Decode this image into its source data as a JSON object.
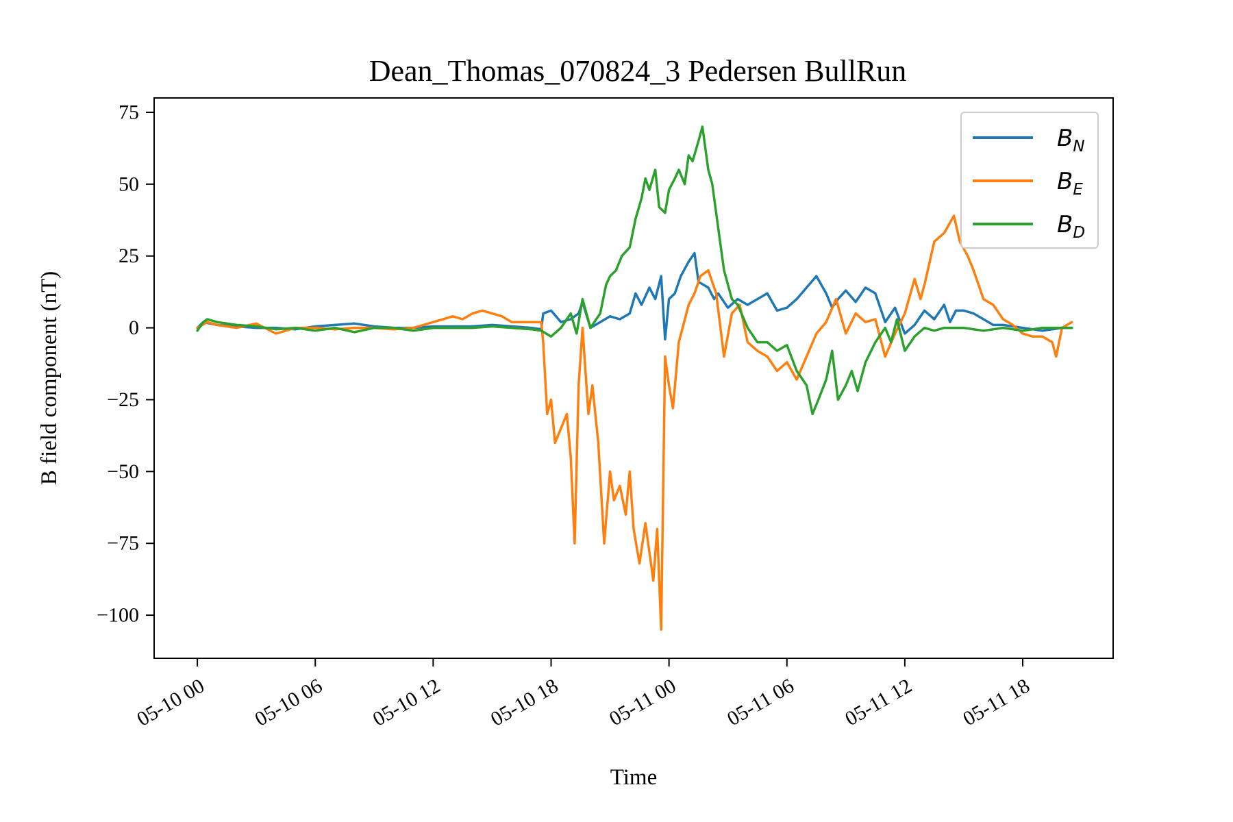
{
  "chart_data": {
    "type": "line",
    "title": "Dean_Thomas_070824_3 Pedersen BullRun",
    "xlabel": "Time",
    "ylabel": "B field component (nT)",
    "x_unit": "hours since 05-10 00:00",
    "xlim": [
      -2.2,
      46.6
    ],
    "ylim": [
      -115,
      80
    ],
    "xticks": [
      {
        "label": "05-10 00",
        "value": 0
      },
      {
        "label": "05-10 06",
        "value": 6
      },
      {
        "label": "05-10 12",
        "value": 12
      },
      {
        "label": "05-10 18",
        "value": 18
      },
      {
        "label": "05-11 00",
        "value": 24
      },
      {
        "label": "05-11 06",
        "value": 30
      },
      {
        "label": "05-11 12",
        "value": 36
      },
      {
        "label": "05-11 18",
        "value": 42
      }
    ],
    "yticks": [
      {
        "label": "75",
        "value": 75
      },
      {
        "label": "50",
        "value": 50
      },
      {
        "label": "25",
        "value": 25
      },
      {
        "label": "0",
        "value": 0
      },
      {
        "label": "−25",
        "value": -25
      },
      {
        "label": "−50",
        "value": -50
      },
      {
        "label": "−75",
        "value": -75
      },
      {
        "label": "−100",
        "value": -100
      }
    ],
    "grid": false,
    "legend_position": "top-right",
    "series": [
      {
        "name": "B_N",
        "legend_main": "B",
        "legend_sub": "N",
        "color": "#1f77b4",
        "points": [
          [
            0,
            0
          ],
          [
            0.3,
            2
          ],
          [
            1,
            1
          ],
          [
            2,
            0.5
          ],
          [
            3,
            0
          ],
          [
            4,
            0
          ],
          [
            5,
            -0.5
          ],
          [
            6,
            0.5
          ],
          [
            7,
            1
          ],
          [
            8,
            1.5
          ],
          [
            9,
            0.5
          ],
          [
            10,
            0
          ],
          [
            11,
            0
          ],
          [
            12,
            0.5
          ],
          [
            13,
            0.5
          ],
          [
            14,
            0.5
          ],
          [
            15,
            1
          ],
          [
            16,
            0.5
          ],
          [
            17,
            0
          ],
          [
            17.5,
            -0.5
          ],
          [
            17.6,
            5
          ],
          [
            18,
            6
          ],
          [
            18.5,
            2
          ],
          [
            19,
            3
          ],
          [
            19.4,
            5
          ],
          [
            19.6,
            9
          ],
          [
            20,
            0
          ],
          [
            20.5,
            2
          ],
          [
            21,
            4
          ],
          [
            21.5,
            3
          ],
          [
            22,
            5
          ],
          [
            22.3,
            12
          ],
          [
            22.6,
            8
          ],
          [
            23,
            14
          ],
          [
            23.3,
            10
          ],
          [
            23.6,
            18
          ],
          [
            23.8,
            -4
          ],
          [
            24,
            10
          ],
          [
            24.3,
            12
          ],
          [
            24.6,
            18
          ],
          [
            25,
            23
          ],
          [
            25.3,
            26
          ],
          [
            25.5,
            16
          ],
          [
            26,
            14
          ],
          [
            26.3,
            10
          ],
          [
            26.5,
            12
          ],
          [
            27,
            7
          ],
          [
            27.5,
            10
          ],
          [
            28,
            8
          ],
          [
            28.5,
            10
          ],
          [
            29,
            12
          ],
          [
            29.5,
            6
          ],
          [
            30,
            7
          ],
          [
            30.5,
            10
          ],
          [
            31,
            14
          ],
          [
            31.5,
            18
          ],
          [
            32,
            12
          ],
          [
            32.3,
            7
          ],
          [
            32.6,
            10
          ],
          [
            33,
            13
          ],
          [
            33.5,
            9
          ],
          [
            34,
            14
          ],
          [
            34.5,
            12
          ],
          [
            35,
            2
          ],
          [
            35.5,
            7
          ],
          [
            36,
            -2
          ],
          [
            36.5,
            1
          ],
          [
            37,
            6
          ],
          [
            37.5,
            3
          ],
          [
            38,
            8
          ],
          [
            38.3,
            2
          ],
          [
            38.6,
            6
          ],
          [
            39,
            6
          ],
          [
            39.5,
            5
          ],
          [
            40,
            3
          ],
          [
            40.5,
            1
          ],
          [
            41,
            1
          ],
          [
            42,
            0
          ],
          [
            43,
            -1
          ],
          [
            44,
            0
          ],
          [
            44.5,
            0
          ]
        ]
      },
      {
        "name": "B_E",
        "legend_main": "B",
        "legend_sub": "E",
        "color": "#ff7f0e",
        "points": [
          [
            0,
            0
          ],
          [
            0.5,
            2
          ],
          [
            1,
            1
          ],
          [
            2,
            0
          ],
          [
            3,
            1.5
          ],
          [
            4,
            -2
          ],
          [
            5,
            0
          ],
          [
            6,
            0
          ],
          [
            7,
            -0.5
          ],
          [
            8,
            0
          ],
          [
            9,
            0
          ],
          [
            10,
            -0.5
          ],
          [
            11,
            0
          ],
          [
            12,
            2
          ],
          [
            13,
            4
          ],
          [
            13.5,
            3
          ],
          [
            14,
            5
          ],
          [
            14.5,
            6
          ],
          [
            15,
            5
          ],
          [
            15.5,
            4
          ],
          [
            16,
            2
          ],
          [
            16.5,
            2
          ],
          [
            17,
            2
          ],
          [
            17.5,
            2
          ],
          [
            17.6,
            -5
          ],
          [
            17.8,
            -30
          ],
          [
            18,
            -25
          ],
          [
            18.2,
            -40
          ],
          [
            18.5,
            -35
          ],
          [
            18.8,
            -30
          ],
          [
            19,
            -45
          ],
          [
            19.2,
            -75
          ],
          [
            19.4,
            -20
          ],
          [
            19.6,
            0
          ],
          [
            19.9,
            -30
          ],
          [
            20.1,
            -20
          ],
          [
            20.4,
            -40
          ],
          [
            20.7,
            -75
          ],
          [
            21,
            -50
          ],
          [
            21.2,
            -60
          ],
          [
            21.5,
            -55
          ],
          [
            21.8,
            -65
          ],
          [
            22,
            -50
          ],
          [
            22.2,
            -70
          ],
          [
            22.5,
            -82
          ],
          [
            22.8,
            -68
          ],
          [
            23,
            -78
          ],
          [
            23.2,
            -88
          ],
          [
            23.4,
            -70
          ],
          [
            23.6,
            -105
          ],
          [
            23.8,
            -10
          ],
          [
            24,
            -20
          ],
          [
            24.2,
            -28
          ],
          [
            24.5,
            -5
          ],
          [
            25,
            8
          ],
          [
            25.3,
            12
          ],
          [
            25.6,
            18
          ],
          [
            26,
            20
          ],
          [
            26.4,
            12
          ],
          [
            26.8,
            -10
          ],
          [
            27.2,
            5
          ],
          [
            27.6,
            8
          ],
          [
            28,
            -5
          ],
          [
            28.5,
            -8
          ],
          [
            29,
            -10
          ],
          [
            29.5,
            -15
          ],
          [
            30,
            -12
          ],
          [
            30.5,
            -18
          ],
          [
            31,
            -10
          ],
          [
            31.5,
            -2
          ],
          [
            32,
            2
          ],
          [
            32.5,
            10
          ],
          [
            33,
            -2
          ],
          [
            33.5,
            5
          ],
          [
            34,
            2
          ],
          [
            34.5,
            3
          ],
          [
            35,
            -10
          ],
          [
            35.5,
            -2
          ],
          [
            36,
            5
          ],
          [
            36.5,
            17
          ],
          [
            36.8,
            10
          ],
          [
            37,
            15
          ],
          [
            37.5,
            30
          ],
          [
            38,
            33
          ],
          [
            38.5,
            39
          ],
          [
            38.8,
            30
          ],
          [
            39.2,
            25
          ],
          [
            39.5,
            20
          ],
          [
            40,
            10
          ],
          [
            40.5,
            8
          ],
          [
            41,
            3
          ],
          [
            41.5,
            1
          ],
          [
            42,
            -2
          ],
          [
            42.5,
            -3
          ],
          [
            43,
            -3
          ],
          [
            43.5,
            -5
          ],
          [
            43.7,
            -10
          ],
          [
            44,
            0
          ],
          [
            44.5,
            2
          ]
        ]
      },
      {
        "name": "B_D",
        "legend_main": "B",
        "legend_sub": "D",
        "color": "#2ca02c",
        "points": [
          [
            0,
            -1
          ],
          [
            0.3,
            2
          ],
          [
            0.5,
            3
          ],
          [
            1,
            2
          ],
          [
            2,
            1
          ],
          [
            3,
            0.5
          ],
          [
            4,
            -0.5
          ],
          [
            5,
            0
          ],
          [
            6,
            -1
          ],
          [
            7,
            0
          ],
          [
            8,
            -1.5
          ],
          [
            9,
            0
          ],
          [
            10,
            0
          ],
          [
            11,
            -1
          ],
          [
            12,
            0
          ],
          [
            13,
            0
          ],
          [
            14,
            0
          ],
          [
            15,
            0.5
          ],
          [
            16,
            0
          ],
          [
            17,
            -0.5
          ],
          [
            17.5,
            -1
          ],
          [
            18,
            -3
          ],
          [
            18.5,
            0
          ],
          [
            19,
            5
          ],
          [
            19.3,
            -2
          ],
          [
            19.6,
            10
          ],
          [
            20,
            0
          ],
          [
            20.5,
            5
          ],
          [
            20.8,
            15
          ],
          [
            21,
            18
          ],
          [
            21.3,
            20
          ],
          [
            21.6,
            25
          ],
          [
            22,
            28
          ],
          [
            22.3,
            38
          ],
          [
            22.6,
            45
          ],
          [
            22.8,
            52
          ],
          [
            23,
            48
          ],
          [
            23.3,
            55
          ],
          [
            23.5,
            42
          ],
          [
            23.8,
            40
          ],
          [
            24,
            48
          ],
          [
            24.3,
            52
          ],
          [
            24.5,
            55
          ],
          [
            24.8,
            50
          ],
          [
            25,
            60
          ],
          [
            25.2,
            58
          ],
          [
            25.5,
            65
          ],
          [
            25.7,
            70
          ],
          [
            26,
            55
          ],
          [
            26.2,
            50
          ],
          [
            26.4,
            40
          ],
          [
            26.6,
            30
          ],
          [
            26.8,
            20
          ],
          [
            27.2,
            10
          ],
          [
            27.5,
            8
          ],
          [
            28,
            0
          ],
          [
            28.5,
            -5
          ],
          [
            29,
            -5
          ],
          [
            29.5,
            -8
          ],
          [
            30,
            -6
          ],
          [
            30.5,
            -15
          ],
          [
            31,
            -20
          ],
          [
            31.3,
            -30
          ],
          [
            31.6,
            -25
          ],
          [
            32,
            -18
          ],
          [
            32.3,
            -8
          ],
          [
            32.6,
            -25
          ],
          [
            33,
            -20
          ],
          [
            33.3,
            -15
          ],
          [
            33.6,
            -22
          ],
          [
            34,
            -12
          ],
          [
            34.5,
            -5
          ],
          [
            35,
            0
          ],
          [
            35.3,
            -5
          ],
          [
            35.6,
            3
          ],
          [
            36,
            -8
          ],
          [
            36.5,
            -3
          ],
          [
            37,
            0
          ],
          [
            37.5,
            -1
          ],
          [
            38,
            0
          ],
          [
            38.5,
            0
          ],
          [
            39,
            0
          ],
          [
            40,
            -1
          ],
          [
            41,
            0
          ],
          [
            42,
            -1
          ],
          [
            43,
            0
          ],
          [
            44,
            0
          ],
          [
            44.5,
            0
          ]
        ]
      }
    ]
  }
}
